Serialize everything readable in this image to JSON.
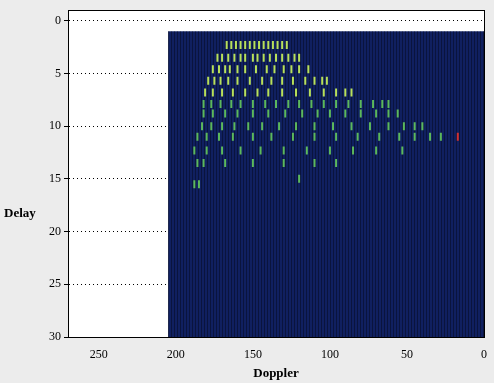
{
  "chart_data": {
    "type": "scatter",
    "x_label": "Doppler",
    "y_label": "Delay",
    "xlim": [
      270,
      0
    ],
    "xticks": [
      250,
      200,
      150,
      100,
      50,
      0
    ],
    "ylim": [
      30,
      -1
    ],
    "yticks": [
      0,
      5,
      10,
      15,
      20,
      25,
      30
    ],
    "grid": true,
    "series": [
      {
        "type": "rect",
        "color": "#102060",
        "x": [
          0,
          205
        ],
        "values": [
          1,
          30
        ]
      },
      {
        "type": "scatter",
        "color": "#b8e05a",
        "marker": "vline",
        "x": [
          167,
          164,
          161,
          158,
          155,
          152,
          149,
          146,
          143,
          140,
          137,
          134,
          131,
          128,
          173,
          170,
          166,
          162,
          158,
          155,
          150,
          147,
          143,
          139,
          135,
          131,
          127,
          123,
          120,
          176,
          172,
          168,
          165,
          160,
          155,
          148,
          141,
          136,
          130,
          125,
          120,
          114,
          179,
          175,
          171,
          166,
          160,
          152,
          144,
          138,
          131,
          124,
          116,
          110,
          105,
          102,
          181,
          176,
          170,
          163,
          155,
          147,
          140,
          131,
          122,
          113,
          104,
          96,
          90,
          86
        ],
        "values": [
          2.3,
          2.3,
          2.3,
          2.3,
          2.3,
          2.3,
          2.3,
          2.3,
          2.3,
          2.3,
          2.3,
          2.3,
          2.3,
          2.3,
          3.5,
          3.5,
          3.5,
          3.5,
          3.5,
          3.5,
          3.5,
          3.5,
          3.5,
          3.5,
          3.5,
          3.5,
          3.5,
          3.5,
          3.5,
          4.6,
          4.6,
          4.6,
          4.6,
          4.6,
          4.6,
          4.6,
          4.6,
          4.6,
          4.6,
          4.6,
          4.6,
          4.6,
          5.7,
          5.7,
          5.7,
          5.7,
          5.7,
          5.7,
          5.7,
          5.7,
          5.7,
          5.7,
          5.7,
          5.7,
          5.7,
          5.7,
          6.8,
          6.8,
          6.8,
          6.8,
          6.8,
          6.8,
          6.8,
          6.8,
          6.8,
          6.8,
          6.8,
          6.8,
          6.8,
          6.8
        ]
      },
      {
        "type": "scatter",
        "color": "#5cb85c",
        "marker": "vline",
        "x": [
          182,
          177,
          171,
          164,
          158,
          150,
          142,
          135,
          127,
          120,
          112,
          104,
          96,
          88,
          80,
          72,
          66,
          62,
          182,
          176,
          168,
          160,
          150,
          140,
          129,
          118,
          108,
          100,
          90,
          80,
          70,
          62,
          56,
          183,
          177,
          170,
          162,
          153,
          144,
          133,
          122,
          110,
          98,
          86,
          74,
          62,
          52,
          45,
          40,
          186,
          180,
          172,
          163,
          150,
          138,
          124,
          110,
          96,
          82,
          68,
          55,
          45,
          35,
          28,
          188,
          180,
          170,
          158,
          145,
          130,
          115,
          100,
          85,
          70,
          53,
          186,
          182,
          168,
          150,
          130,
          110,
          96,
          188,
          185,
          120
        ],
        "values": [
          7.9,
          7.9,
          7.9,
          7.9,
          7.9,
          7.9,
          7.9,
          7.9,
          7.9,
          7.9,
          7.9,
          7.9,
          7.9,
          7.9,
          7.9,
          7.9,
          7.9,
          7.9,
          8.8,
          8.8,
          8.8,
          8.8,
          8.8,
          8.8,
          8.8,
          8.8,
          8.8,
          8.8,
          8.8,
          8.8,
          8.8,
          8.8,
          8.8,
          10,
          10,
          10,
          10,
          10,
          10,
          10,
          10,
          10,
          10,
          10,
          10,
          10,
          10,
          10,
          10,
          11,
          11,
          11,
          11,
          11,
          11,
          11,
          11,
          11,
          11,
          11,
          11,
          11,
          11,
          11,
          12.3,
          12.3,
          12.3,
          12.3,
          12.3,
          12.3,
          12.3,
          12.3,
          12.3,
          12.3,
          12.3,
          13.5,
          13.5,
          13.5,
          13.5,
          13.5,
          13.5,
          13.5,
          15.5,
          15.5,
          15
        ]
      },
      {
        "type": "scatter",
        "color": "#d03030",
        "marker": "vline",
        "x": [
          17
        ],
        "values": [
          11
        ]
      }
    ]
  }
}
